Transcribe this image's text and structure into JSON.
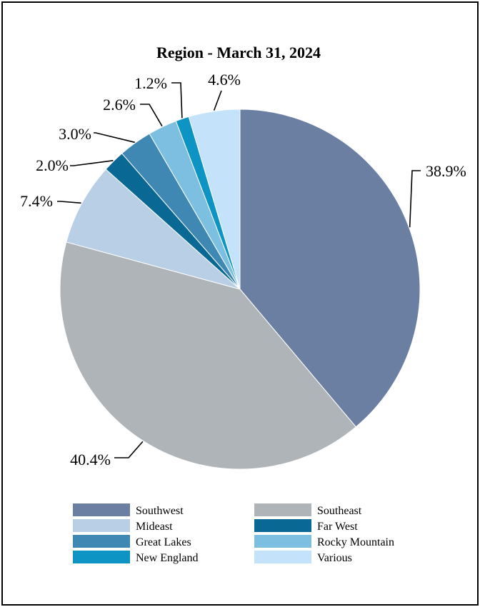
{
  "chart_data": {
    "type": "pie",
    "title": "Region - March 31, 2024",
    "start_angle_deg": 0,
    "direction": "clockwise",
    "slices": [
      {
        "name": "Southwest",
        "value": 38.9,
        "label": "38.9%",
        "color": "#6b7fa2"
      },
      {
        "name": "Southeast",
        "value": 40.4,
        "label": "40.4%",
        "color": "#aeb4b8"
      },
      {
        "name": "Mideast",
        "value": 7.4,
        "label": "7.4%",
        "color": "#b8cfe6"
      },
      {
        "name": "Far West",
        "value": 2.0,
        "label": "2.0%",
        "color": "#0a6894"
      },
      {
        "name": "Great Lakes",
        "value": 3.0,
        "label": "3.0%",
        "color": "#3f88b4"
      },
      {
        "name": "Rocky Mountain",
        "value": 2.6,
        "label": "2.6%",
        "color": "#7cbfe0"
      },
      {
        "name": "New England",
        "value": 1.2,
        "label": "1.2%",
        "color": "#0d94c4"
      },
      {
        "name": "Various",
        "value": 4.6,
        "label": "4.6%",
        "color": "#c4e3fb"
      }
    ],
    "legend_order": [
      "Southwest",
      "Southeast",
      "Mideast",
      "Far West",
      "Great Lakes",
      "Rocky Mountain",
      "New England",
      "Various"
    ],
    "legend_placement": "bottom"
  }
}
